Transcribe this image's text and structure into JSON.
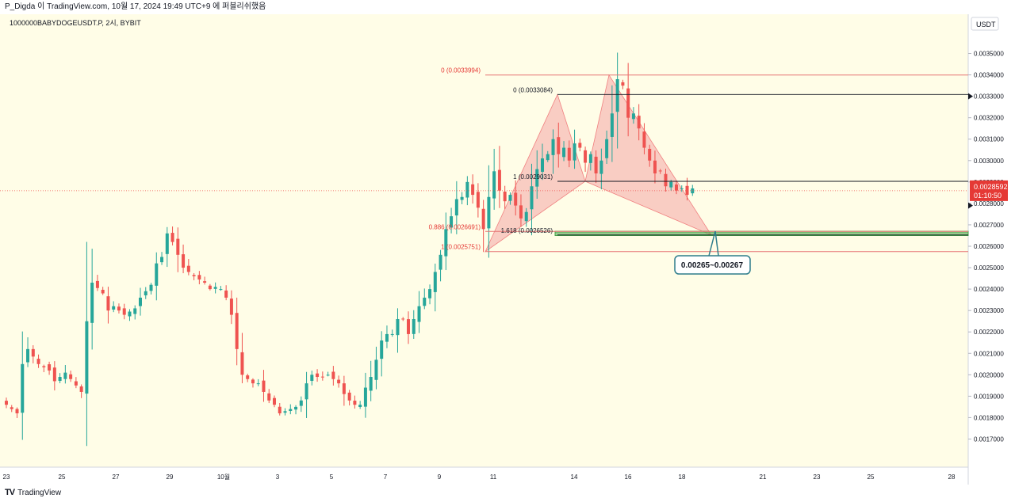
{
  "header": {
    "caption": "P_Digda 이 TradingView.com, 10월 17, 2024 19:49 UTC+9 에 퍼블리쉬했음"
  },
  "symbol": {
    "label": "1000000BABYDOGEUSDT.P, 2시, BYBIT"
  },
  "price_axis": {
    "currency": "USDT"
  },
  "current_price": {
    "value": "0.0028592",
    "countdown": "01:10:50"
  },
  "footer": {
    "brand": "TradingView"
  },
  "colors": {
    "background": "#fffde7",
    "up": "#26a69a",
    "down": "#ef5350",
    "pattern": "#f4a6a6",
    "zone": "#66bb6a",
    "callout": "#2e7d8c"
  },
  "chart_data": {
    "type": "candlestick",
    "ylabel": "USDT",
    "ylim": [
      0.00165,
      0.00355
    ],
    "y_ticks": [
      "0.0035000",
      "0.0034000",
      "0.0033000",
      "0.0032000",
      "0.0031000",
      "0.0030000",
      "0.0029000",
      "0.0028000",
      "0.0027000",
      "0.0026000",
      "0.0025000",
      "0.0024000",
      "0.0023000",
      "0.0022000",
      "0.0021000",
      "0.0020000",
      "0.0019000",
      "0.0018000",
      "0.0017000"
    ],
    "x_ticks": [
      "23",
      "25",
      "27",
      "29",
      "10월",
      "3",
      "5",
      "7",
      "9",
      "11",
      "14",
      "16",
      "18",
      "21",
      "23",
      "25",
      "28"
    ],
    "close_path": [
      [
        0,
        0.00186
      ],
      [
        2,
        0.00182
      ],
      [
        3,
        0.00205
      ],
      [
        4,
        0.00212
      ],
      [
        6,
        0.00205
      ],
      [
        8,
        0.00202
      ],
      [
        9,
        0.00197
      ],
      [
        11,
        0.00201
      ],
      [
        13,
        0.00195
      ],
      [
        14,
        0.00192
      ],
      [
        15,
        0.00225
      ],
      [
        16,
        0.00243
      ],
      [
        18,
        0.00238
      ],
      [
        19,
        0.0023
      ],
      [
        20,
        0.00232
      ],
      [
        22,
        0.00228
      ],
      [
        24,
        0.00231
      ],
      [
        25,
        0.00236
      ],
      [
        27,
        0.00242
      ],
      [
        28,
        0.00252
      ],
      [
        29,
        0.00255
      ],
      [
        30,
        0.00266
      ],
      [
        31,
        0.00262
      ],
      [
        32,
        0.00256
      ],
      [
        33,
        0.0025
      ],
      [
        35,
        0.00246
      ],
      [
        37,
        0.00243
      ],
      [
        38,
        0.0024
      ],
      [
        39,
        0.00241
      ],
      [
        40,
        0.0024
      ],
      [
        41,
        0.00236
      ],
      [
        42,
        0.00228
      ],
      [
        43,
        0.00212
      ],
      [
        44,
        0.002
      ],
      [
        46,
        0.00196
      ],
      [
        47,
        0.00196
      ],
      [
        48,
        0.00192
      ],
      [
        49,
        0.00188
      ],
      [
        50,
        0.00186
      ],
      [
        51,
        0.00182
      ],
      [
        52,
        0.00183
      ],
      [
        53,
        0.00184
      ],
      [
        54,
        0.00185
      ],
      [
        55,
        0.00188
      ],
      [
        56,
        0.00196
      ],
      [
        57,
        0.002
      ],
      [
        58,
        0.00199
      ],
      [
        59,
        0.00199
      ],
      [
        60,
        0.002
      ],
      [
        61,
        0.00198
      ],
      [
        62,
        0.00196
      ],
      [
        63,
        0.00191
      ],
      [
        64,
        0.00188
      ],
      [
        65,
        0.00186
      ],
      [
        66,
        0.00186
      ],
      [
        67,
        0.00194
      ],
      [
        68,
        0.00199
      ],
      [
        69,
        0.00207
      ],
      [
        70,
        0.00216
      ],
      [
        71,
        0.00219
      ],
      [
        72,
        0.00219
      ],
      [
        73,
        0.00226
      ],
      [
        74,
        0.00226
      ],
      [
        75,
        0.00219
      ],
      [
        76,
        0.00226
      ],
      [
        77,
        0.00232
      ],
      [
        78,
        0.00236
      ],
      [
        79,
        0.0024
      ],
      [
        80,
        0.00248
      ],
      [
        81,
        0.00256
      ],
      [
        82,
        0.00268
      ],
      [
        83,
        0.00274
      ],
      [
        84,
        0.00282
      ],
      [
        85,
        0.00283
      ],
      [
        86,
        0.0029
      ],
      [
        87,
        0.00284
      ],
      [
        88,
        0.00278
      ],
      [
        89,
        0.00268
      ],
      [
        90,
        0.00283
      ],
      [
        91,
        0.00295
      ],
      [
        92,
        0.00286
      ],
      [
        93,
        0.00281
      ],
      [
        94,
        0.00284
      ],
      [
        95,
        0.00279
      ],
      [
        96,
        0.00273
      ],
      [
        97,
        0.00276
      ],
      [
        98,
        0.00288
      ],
      [
        99,
        0.00296
      ],
      [
        100,
        0.00301
      ],
      [
        101,
        0.00303
      ],
      [
        102,
        0.0031
      ],
      [
        103,
        0.00303
      ],
      [
        104,
        0.00306
      ],
      [
        105,
        0.003
      ],
      [
        106,
        0.00308
      ],
      [
        107,
        0.00306
      ],
      [
        108,
        0.00299
      ],
      [
        109,
        0.00303
      ],
      [
        110,
        0.00294
      ],
      [
        111,
        0.003
      ],
      [
        112,
        0.0031
      ],
      [
        113,
        0.00322
      ],
      [
        114,
        0.00338
      ],
      [
        115,
        0.00335
      ],
      [
        116,
        0.0032
      ],
      [
        117,
        0.00322
      ],
      [
        118,
        0.00315
      ],
      [
        119,
        0.00306
      ],
      [
        120,
        0.003
      ],
      [
        121,
        0.00294
      ],
      [
        122,
        0.00295
      ],
      [
        123,
        0.00288
      ],
      [
        124,
        0.0029
      ],
      [
        125,
        0.00286
      ],
      [
        126,
        0.00287
      ],
      [
        127,
        0.00284
      ],
      [
        128,
        0.00287
      ]
    ],
    "current_price": 0.0028592,
    "fib_left": [
      {
        "label": "0 (0.0033994)",
        "value": 0.0033994
      },
      {
        "label": "0.886 (0.0026691)",
        "value": 0.0026691
      },
      {
        "label": "1 (0.0025751)",
        "value": 0.0025751
      }
    ],
    "fib_right": [
      {
        "label": "0 (0.0033084)",
        "value": 0.0033084
      },
      {
        "label": "1 (0.0029031)",
        "value": 0.0029031
      },
      {
        "label": "1.618 (0.0026526)",
        "value": 0.0026526
      }
    ],
    "target_zone": [
      0.00265,
      0.00267
    ],
    "pattern_points": [
      0.0025751,
      0.0033084,
      0.0029031,
      0.0033994,
      0.0026526
    ],
    "callout": "0.00265~0.00267"
  }
}
